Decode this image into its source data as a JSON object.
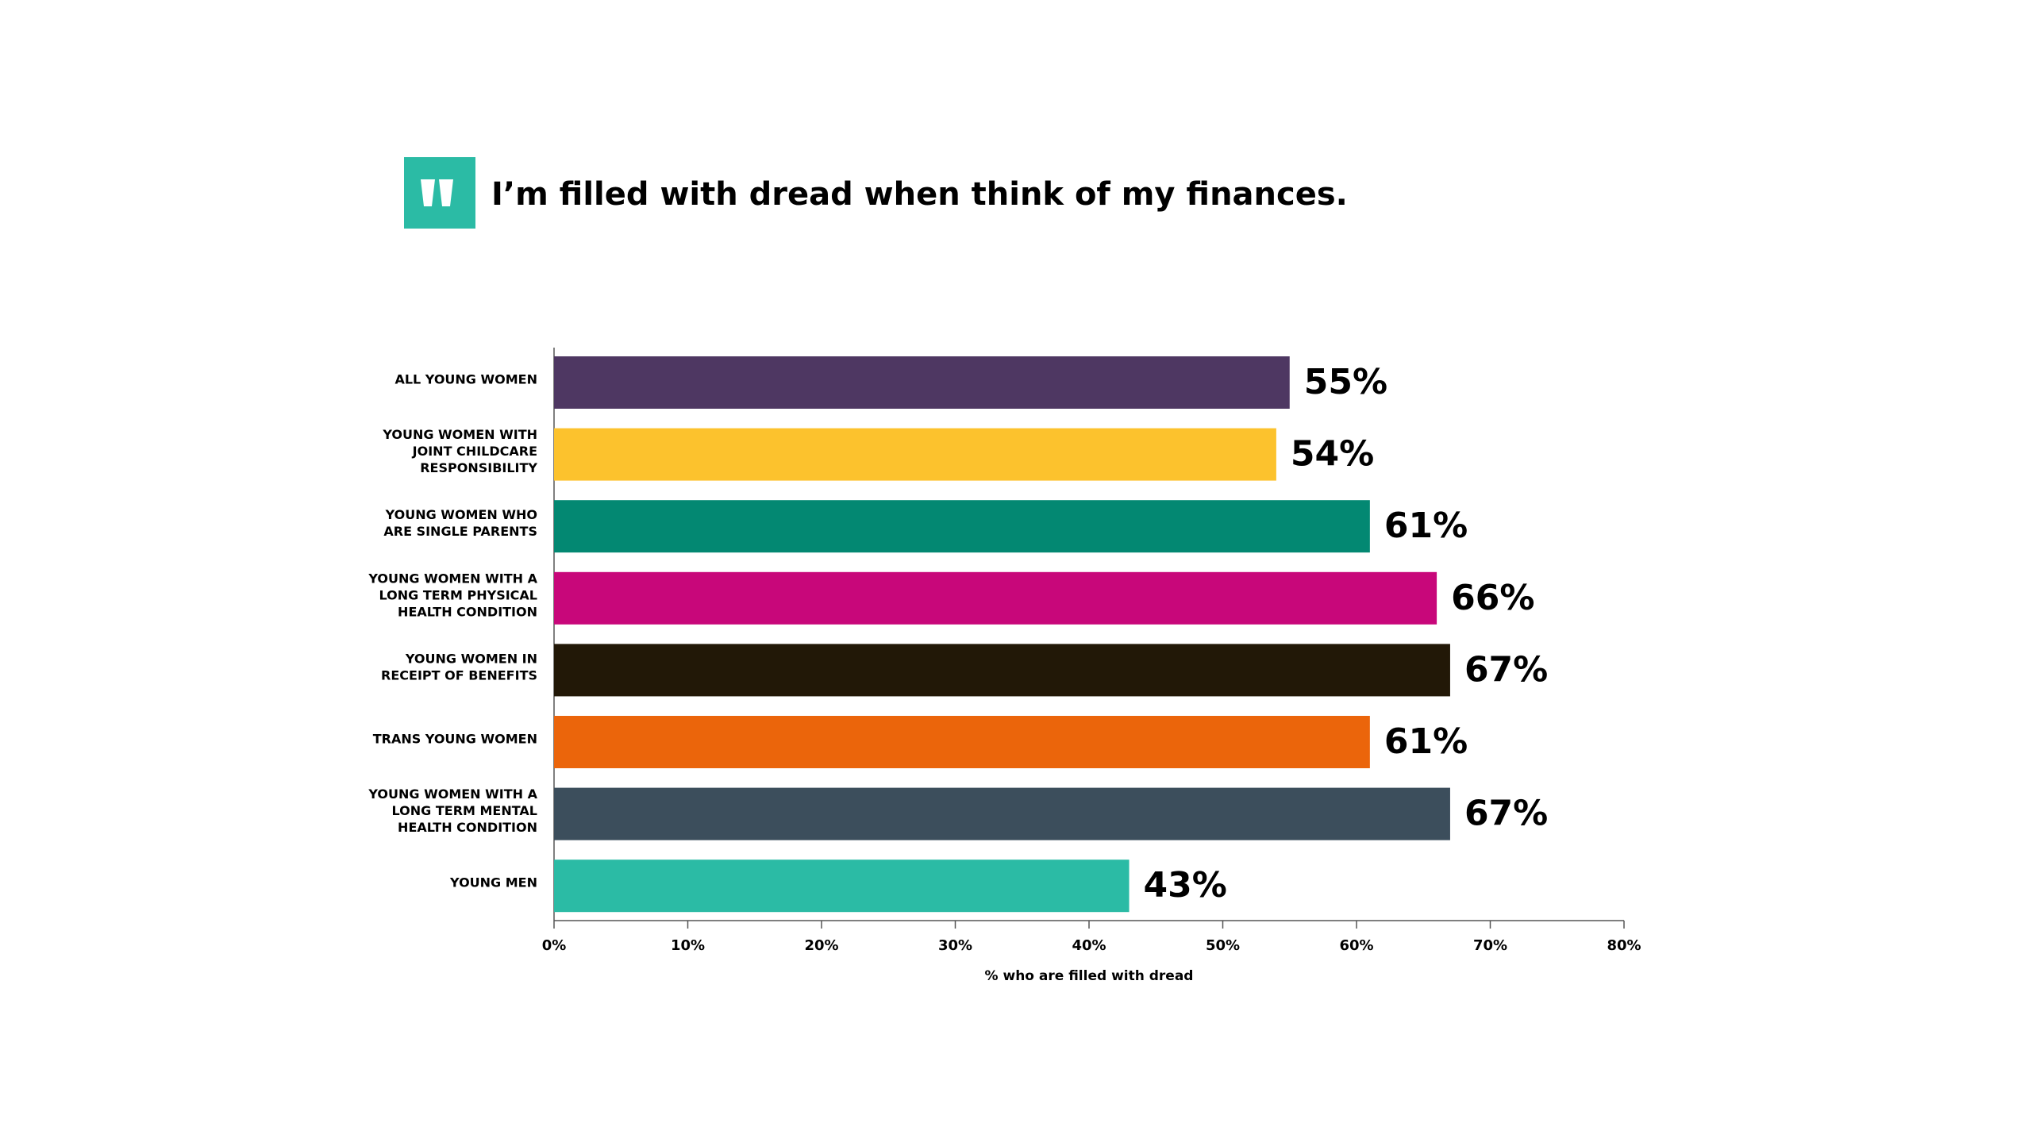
{
  "chart_data": {
    "type": "bar",
    "orientation": "horizontal",
    "title": "I’m filled with dread when think of my finances.",
    "x_label": "% who are filled with dread",
    "categories": [
      [
        "ALL YOUNG WOMEN"
      ],
      [
        "YOUNG WOMEN WITH",
        "JOINT CHILDCARE",
        "RESPONSIBILITY"
      ],
      [
        "YOUNG WOMEN WHO",
        "ARE SINGLE PARENTS"
      ],
      [
        "YOUNG WOMEN WITH A",
        "LONG TERM PHYSICAL",
        "HEALTH CONDITION"
      ],
      [
        "YOUNG WOMEN IN",
        "RECEIPT OF BENEFITS"
      ],
      [
        "TRANS YOUNG WOMEN"
      ],
      [
        "YOUNG WOMEN WITH A",
        "LONG TERM MENTAL",
        "HEALTH CONDITION"
      ],
      [
        "YOUNG MEN"
      ]
    ],
    "values": [
      55,
      54,
      61,
      66,
      67,
      61,
      67,
      43
    ],
    "value_labels": [
      "55%",
      "54%",
      "61%",
      "66%",
      "67%",
      "61%",
      "67%",
      "43%"
    ],
    "colors": [
      "#4e3762",
      "#fcc22d",
      "#038872",
      "#c8077a",
      "#221807",
      "#eb650b",
      "#3c4e5c",
      "#2bbba5"
    ],
    "xlim": [
      0,
      80
    ],
    "xticks": [
      {
        "value": 0,
        "label": "0%"
      },
      {
        "value": 10,
        "label": "10%"
      },
      {
        "value": 20,
        "label": "20%"
      },
      {
        "value": 30,
        "label": "30%"
      },
      {
        "value": 40,
        "label": "40%"
      },
      {
        "value": 50,
        "label": "50%"
      },
      {
        "value": 60,
        "label": "60%"
      },
      {
        "value": 70,
        "label": "70%"
      },
      {
        "value": 80,
        "label": "80%"
      }
    ],
    "grid": false
  }
}
